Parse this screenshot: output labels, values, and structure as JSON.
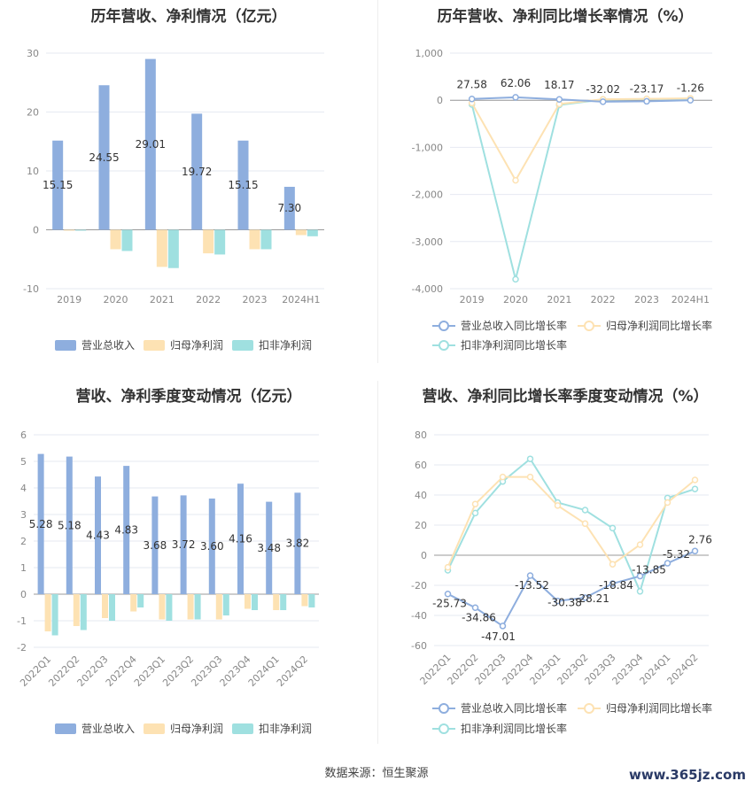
{
  "source": "数据来源：恒生聚源",
  "watermark": "www.365jz.com",
  "colors": {
    "revenue": "#8eaede",
    "parent": "#fde2b3",
    "nonrec": "#9fe0e0",
    "grid": "#e6e9f2",
    "axis": "#999999"
  },
  "chart_data": [
    {
      "type": "bar",
      "title": "历年营收、净利情况（亿元）",
      "categories": [
        "2019",
        "2020",
        "2021",
        "2022",
        "2023",
        "2024H1"
      ],
      "series": [
        {
          "name": "营业总收入",
          "values": [
            15.15,
            24.55,
            29.01,
            19.72,
            15.15,
            7.3
          ],
          "labels": [
            "15.15",
            "24.55",
            "29.01",
            "19.72",
            "15.15",
            "7.30"
          ]
        },
        {
          "name": "归母净利润",
          "values": [
            -0.1,
            -3.3,
            -6.3,
            -4.0,
            -3.3,
            -0.9
          ]
        },
        {
          "name": "扣非净利润",
          "values": [
            -0.1,
            -3.6,
            -6.5,
            -4.2,
            -3.3,
            -1.1
          ]
        }
      ],
      "ylim": [
        -10,
        30
      ],
      "yticks": [
        "-10",
        "0",
        "10",
        "20",
        "30"
      ],
      "grid": true,
      "legend": "bottom"
    },
    {
      "type": "line",
      "title": "历年营收、净利同比增长率情况（%）",
      "categories": [
        "2019",
        "2020",
        "2021",
        "2022",
        "2023",
        "2024H1"
      ],
      "series": [
        {
          "name": "营业总收入同比增长率",
          "values": [
            27.58,
            62.06,
            18.17,
            -32.02,
            -23.17,
            -1.26
          ],
          "labels": [
            "27.58",
            "62.06",
            "18.17",
            "-32.02",
            "-23.17",
            "-1.26"
          ]
        },
        {
          "name": "归母净利润同比增长率",
          "values": [
            -60,
            -1700,
            -80,
            20,
            30,
            40
          ]
        },
        {
          "name": "扣非净利润同比增长率",
          "values": [
            -90,
            -3800,
            -100,
            15,
            25,
            35
          ]
        }
      ],
      "ylim": [
        -4000,
        1000
      ],
      "yticks": [
        "-4,000",
        "-3,000",
        "-2,000",
        "-1,000",
        "0",
        "1,000"
      ],
      "grid": true,
      "legend": "bottom"
    },
    {
      "type": "bar",
      "title": "营收、净利季度变动情况（亿元）",
      "categories": [
        "2022Q1",
        "2022Q2",
        "2022Q3",
        "2022Q4",
        "2023Q1",
        "2023Q2",
        "2023Q3",
        "2023Q4",
        "2024Q1",
        "2024Q2"
      ],
      "series": [
        {
          "name": "营业总收入",
          "values": [
            5.28,
            5.18,
            4.43,
            4.83,
            3.68,
            3.72,
            3.6,
            4.16,
            3.48,
            3.82
          ],
          "labels": [
            "5.28",
            "5.18",
            "4.43",
            "4.83",
            "3.68",
            "3.72",
            "3.60",
            "4.16",
            "3.48",
            "3.82"
          ]
        },
        {
          "name": "归母净利润",
          "values": [
            -1.4,
            -1.2,
            -0.9,
            -0.65,
            -0.95,
            -0.95,
            -0.95,
            -0.55,
            -0.6,
            -0.45
          ]
        },
        {
          "name": "扣非净利润",
          "values": [
            -1.55,
            -1.35,
            -1.0,
            -0.5,
            -1.0,
            -0.95,
            -0.8,
            -0.6,
            -0.6,
            -0.5
          ]
        }
      ],
      "ylim": [
        -2,
        6
      ],
      "yticks": [
        "-2",
        "-1",
        "0",
        "1",
        "2",
        "3",
        "4",
        "5",
        "6"
      ],
      "grid": true,
      "legend": "bottom"
    },
    {
      "type": "line",
      "title": "营收、净利同比增长率季度变动情况（%）",
      "categories": [
        "2022Q1",
        "2022Q2",
        "2022Q3",
        "2022Q4",
        "2023Q1",
        "2023Q2",
        "2023Q3",
        "2023Q4",
        "2024Q1",
        "2024Q2"
      ],
      "series": [
        {
          "name": "营业总收入同比增长率",
          "values": [
            -25.73,
            -34.86,
            -47.01,
            -13.52,
            -30.38,
            -28.21,
            -18.84,
            -13.85,
            -5.32,
            2.76
          ],
          "labels": [
            "-25.73",
            "-34.86",
            "-47.01",
            "-13.52",
            "-30.38",
            "-28.21",
            "-18.84",
            "-13.85",
            "-5.32",
            "2.76"
          ]
        },
        {
          "name": "归母净利润同比增长率",
          "values": [
            -8,
            34,
            52,
            52,
            33,
            21,
            -6,
            7,
            35,
            50
          ]
        },
        {
          "name": "扣非净利润同比增长率",
          "values": [
            -10,
            28,
            49,
            64,
            35,
            30,
            18,
            -24,
            38,
            44
          ]
        }
      ],
      "ylim": [
        -60,
        80
      ],
      "yticks": [
        "-60",
        "-40",
        "-20",
        "0",
        "20",
        "40",
        "60",
        "80"
      ],
      "grid": true,
      "legend": "bottom"
    }
  ]
}
